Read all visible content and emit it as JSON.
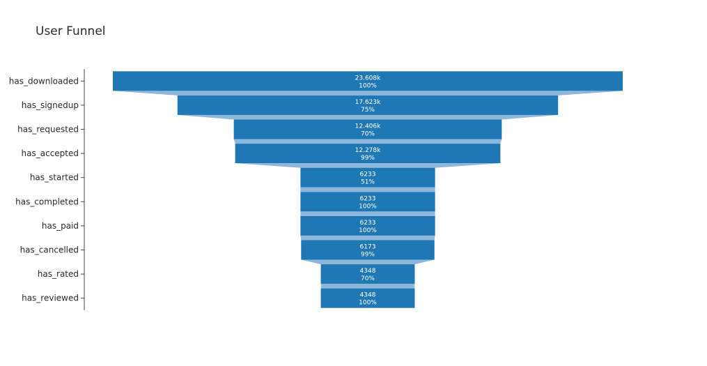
{
  "chart_data": {
    "type": "funnel",
    "title": "User Funnel",
    "categories": [
      "has_downloaded",
      "has_signedup",
      "has_requested",
      "has_accepted",
      "has_started",
      "has_completed",
      "has_paid",
      "has_cancelled",
      "has_rated",
      "has_reviewed"
    ],
    "values": [
      23608,
      17623,
      12406,
      12278,
      6233,
      6233,
      6233,
      6173,
      4348,
      4348
    ],
    "value_labels": [
      "23.608k",
      "17.623k",
      "12.406k",
      "12.278k",
      "6233",
      "6233",
      "6233",
      "6173",
      "4348",
      "4348"
    ],
    "percent_labels": [
      "100%",
      "75%",
      "70%",
      "99%",
      "51%",
      "100%",
      "100%",
      "99%",
      "70%",
      "100%"
    ],
    "colors": {
      "bar": "#1f77b4",
      "connector": "#8db8dc",
      "axis": "#444444"
    }
  }
}
